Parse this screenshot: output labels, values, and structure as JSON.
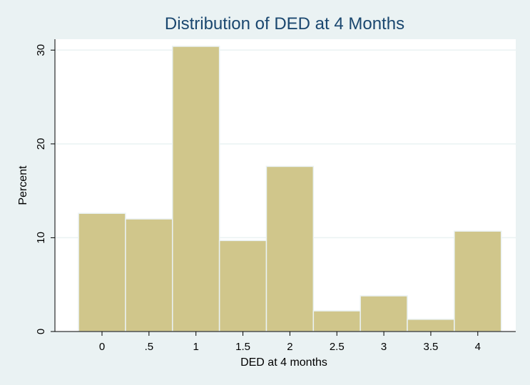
{
  "chart_data": {
    "type": "bar",
    "title": "Distribution of DED at 4 Months",
    "xlabel": "DED at 4 months",
    "ylabel": "Percent",
    "bin_width": 0.5,
    "bins": [
      {
        "center": 0.0,
        "value": 12.6
      },
      {
        "center": 0.5,
        "value": 12.0
      },
      {
        "center": 1.0,
        "value": 30.4
      },
      {
        "center": 1.5,
        "value": 9.7
      },
      {
        "center": 2.0,
        "value": 17.6
      },
      {
        "center": 2.5,
        "value": 2.2
      },
      {
        "center": 3.0,
        "value": 3.8
      },
      {
        "center": 3.5,
        "value": 1.3
      },
      {
        "center": 4.0,
        "value": 10.7
      }
    ],
    "xticks": [
      {
        "value": 0,
        "label": "0"
      },
      {
        "value": 0.5,
        "label": ".5"
      },
      {
        "value": 1,
        "label": "1"
      },
      {
        "value": 1.5,
        "label": "1.5"
      },
      {
        "value": 2,
        "label": "2"
      },
      {
        "value": 2.5,
        "label": "2.5"
      },
      {
        "value": 3,
        "label": "3"
      },
      {
        "value": 3.5,
        "label": "3.5"
      },
      {
        "value": 4,
        "label": "4"
      }
    ],
    "yticks": [
      {
        "value": 0,
        "label": "0"
      },
      {
        "value": 10,
        "label": "10"
      },
      {
        "value": 20,
        "label": "20"
      },
      {
        "value": 30,
        "label": "30"
      }
    ],
    "xlim": [
      -0.5,
      4.5
    ],
    "ylim": [
      0,
      30.4
    ],
    "grid": true,
    "colors": {
      "background": "#eaf2f3",
      "plot_area": "#ffffff",
      "bar_fill": "#d0c68b",
      "title": "#1a476f"
    }
  }
}
